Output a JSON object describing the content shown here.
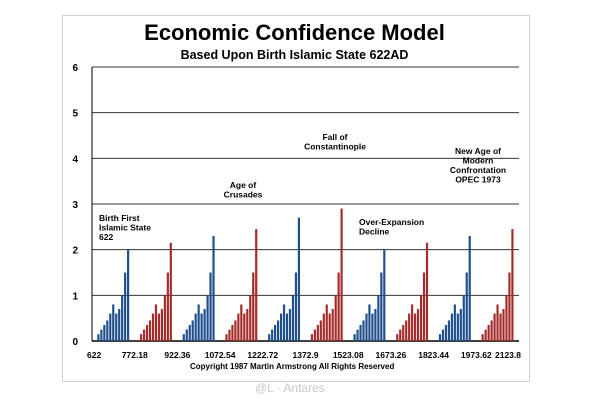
{
  "chart_data": {
    "type": "bar",
    "title": "Economic Confidence Model",
    "subtitle": "Based Upon Birth Islamic State 622AD",
    "ylim": [
      0,
      6
    ],
    "yticks": [
      "0",
      "1",
      "2",
      "3",
      "4",
      "5",
      "6"
    ],
    "grid": "horizontal",
    "x_tick_labels": [
      "622",
      "772.18",
      "922.36",
      "1072.54",
      "1222.72",
      "1372.9",
      "1523.08",
      "1673.26",
      "1823.44",
      "1973.62",
      "2123.8"
    ],
    "wave_bar_values": [
      0.15,
      0.25,
      0.35,
      0.45,
      0.6,
      0.8,
      0.6,
      0.7,
      1.0,
      1.5,
      2.0
    ],
    "series": [
      {
        "color": "#1f4e8c",
        "cycles": [
          1,
          3,
          5,
          7,
          9
        ]
      },
      {
        "color": "#a52a2a",
        "cycles": [
          2,
          4,
          6,
          8,
          10
        ]
      }
    ],
    "cycle_peaks": [
      2.0,
      2.15,
      2.3,
      2.45,
      2.7,
      2.9,
      2.0,
      2.15,
      2.3,
      2.45
    ],
    "annotations": [
      {
        "lines": [
          "Birth First",
          "Islamic State",
          "622"
        ]
      },
      {
        "lines": [
          "Age of",
          "Crusades"
        ]
      },
      {
        "lines": [
          "Fall of",
          "Constantinople"
        ]
      },
      {
        "lines": [
          "Over-Expansion",
          "Decline"
        ]
      },
      {
        "lines": [
          "New Age of",
          "Modern",
          "Confrontation",
          "OPEC 1973"
        ]
      }
    ],
    "copyright": "Copyright 1987 Martin Armstrong All Rights Reserved",
    "watermark": "@L · Antares"
  }
}
